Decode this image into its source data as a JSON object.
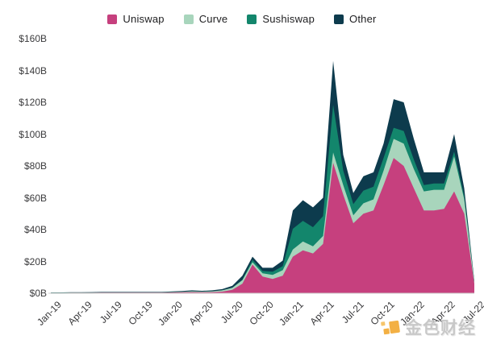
{
  "legend": {
    "items": [
      "Uniswap",
      "Curve",
      "Sushiswap",
      "Other"
    ]
  },
  "watermark": {
    "text": "金色财经",
    "logo_color": "#F0A01E"
  },
  "colors": {
    "uniswap": "#C6407E",
    "curve": "#A8D5BC",
    "sushiswap": "#13866C",
    "other": "#0D3B4D",
    "axis_line": "#cccccc",
    "tick_text": "#3b3b3d"
  },
  "chart_data": {
    "type": "area",
    "stacked": true,
    "title": "",
    "xlabel": "",
    "ylabel": "",
    "ylim": [
      0,
      160
    ],
    "grid": false,
    "legend_position": "top-center",
    "y_ticks": [
      "$0B",
      "$20B",
      "$40B",
      "$60B",
      "$80B",
      "$100B",
      "$120B",
      "$140B",
      "$160B"
    ],
    "y_tick_step": 20,
    "x": [
      "Jan-19",
      "Feb-19",
      "Mar-19",
      "Apr-19",
      "May-19",
      "Jun-19",
      "Jul-19",
      "Aug-19",
      "Sep-19",
      "Oct-19",
      "Nov-19",
      "Dec-19",
      "Jan-20",
      "Feb-20",
      "Mar-20",
      "Apr-20",
      "May-20",
      "Jun-20",
      "Jul-20",
      "Aug-20",
      "Sep-20",
      "Oct-20",
      "Nov-20",
      "Dec-20",
      "Jan-21",
      "Feb-21",
      "Mar-21",
      "Apr-21",
      "May-21",
      "Jun-21",
      "Jul-21",
      "Aug-21",
      "Sep-21",
      "Oct-21",
      "Nov-21",
      "Dec-21",
      "Jan-22",
      "Feb-22",
      "Mar-22",
      "Apr-22",
      "May-22",
      "Jun-22",
      "Jul-22"
    ],
    "x_tick_indices": [
      0,
      3,
      6,
      9,
      12,
      15,
      18,
      21,
      24,
      27,
      30,
      33,
      36,
      39,
      42
    ],
    "units": "billions USD",
    "series": [
      {
        "name": "Uniswap",
        "color": "#C6407E",
        "values": [
          0.2,
          0.2,
          0.3,
          0.3,
          0.3,
          0.4,
          0.4,
          0.4,
          0.4,
          0.4,
          0.4,
          0.4,
          0.5,
          0.6,
          0.7,
          0.6,
          0.7,
          1.0,
          2.2,
          6,
          18,
          10.5,
          9,
          11,
          23,
          27,
          25,
          31,
          82,
          62,
          44,
          50,
          52,
          68,
          85,
          80,
          66,
          52,
          52,
          53,
          64,
          50,
          6
        ]
      },
      {
        "name": "Curve",
        "color": "#A8D5BC",
        "values": [
          0.1,
          0.1,
          0.1,
          0.1,
          0.1,
          0.1,
          0.1,
          0.1,
          0.1,
          0.1,
          0.1,
          0.1,
          0.2,
          0.3,
          0.5,
          0.4,
          0.5,
          0.8,
          1.2,
          2.2,
          1.5,
          2,
          2.5,
          3.5,
          4.5,
          5.5,
          4.5,
          5,
          6.5,
          6,
          5,
          6.5,
          7,
          9,
          12,
          14,
          12,
          12,
          13,
          12,
          22,
          9,
          1
        ]
      },
      {
        "name": "Sushiswap",
        "color": "#13866C",
        "values": [
          0,
          0,
          0,
          0,
          0,
          0,
          0,
          0,
          0,
          0,
          0,
          0,
          0,
          0,
          0,
          0,
          0,
          0,
          0,
          0.3,
          1.5,
          1.5,
          2,
          2.5,
          13,
          13,
          12,
          12.5,
          30,
          9,
          7,
          8,
          8,
          8,
          7,
          8,
          6,
          4,
          4,
          4,
          3,
          2,
          0.3
        ]
      },
      {
        "name": "Other",
        "color": "#0D3B4D",
        "values": [
          0.2,
          0.2,
          0.2,
          0.2,
          0.3,
          0.3,
          0.3,
          0.3,
          0.3,
          0.3,
          0.3,
          0.3,
          0.4,
          0.5,
          0.6,
          0.5,
          0.6,
          0.8,
          1.3,
          2.5,
          2,
          2,
          2.5,
          3.5,
          11.5,
          13,
          12.5,
          11.5,
          27.5,
          10,
          7,
          9,
          9,
          9,
          18,
          18,
          13,
          8,
          7,
          7,
          11,
          5,
          0.7
        ]
      }
    ]
  }
}
